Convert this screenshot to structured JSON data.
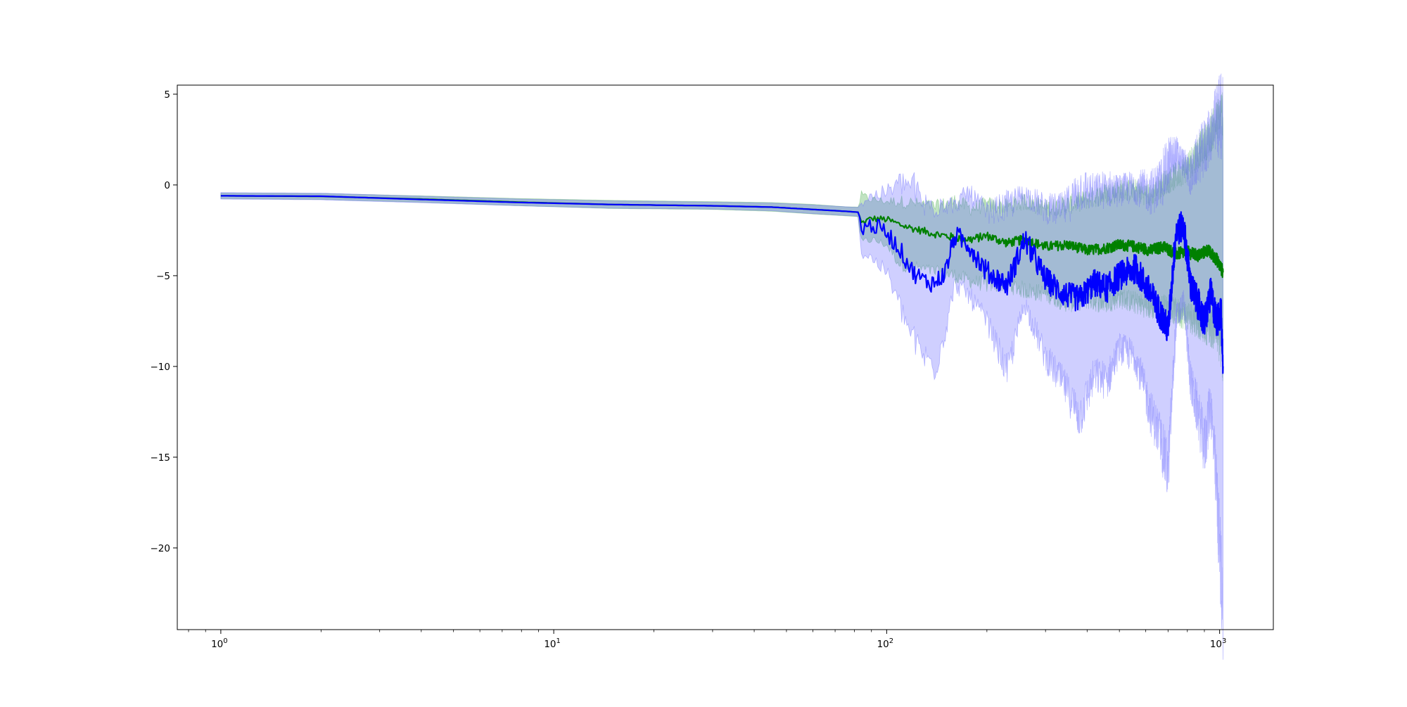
{
  "chart_data": {
    "type": "line",
    "title": "",
    "xlabel": "",
    "ylabel": "",
    "xscale": "log",
    "xlim": [
      0.74,
      1450
    ],
    "ylim": [
      -24.5,
      5.5
    ],
    "grid": false,
    "legend": "none",
    "x_ticks": [
      {
        "value": 1,
        "base": "10",
        "exp": "0"
      },
      {
        "value": 10,
        "base": "10",
        "exp": "1"
      },
      {
        "value": 100,
        "base": "10",
        "exp": "2"
      },
      {
        "value": 1000,
        "base": "10",
        "exp": "3"
      }
    ],
    "y_ticks": [
      {
        "value": 5,
        "label": "5"
      },
      {
        "value": 0,
        "label": "0"
      },
      {
        "value": -5,
        "label": "−5"
      },
      {
        "value": -10,
        "label": "−10"
      },
      {
        "value": -15,
        "label": "−15"
      },
      {
        "value": -20,
        "label": "−20"
      }
    ],
    "series": [
      {
        "color": "#008000",
        "band_color": "#4caf50",
        "band_opacity": 0.35,
        "x": [
          1,
          2,
          4,
          8,
          15,
          30,
          45,
          60,
          75,
          82,
          84,
          90,
          100,
          110,
          120,
          140,
          160,
          180,
          200,
          230,
          260,
          300,
          350,
          400,
          450,
          500,
          560,
          620,
          680,
          740,
          800,
          860,
          920,
          980,
          1024
        ],
        "mean": [
          -0.6,
          -0.63,
          -0.78,
          -0.95,
          -1.08,
          -1.15,
          -1.22,
          -1.35,
          -1.45,
          -1.5,
          -2.1,
          -1.85,
          -1.9,
          -2.2,
          -2.4,
          -2.7,
          -2.9,
          -3.0,
          -2.8,
          -3.2,
          -3.0,
          -3.4,
          -3.3,
          -3.6,
          -3.5,
          -3.3,
          -3.4,
          -3.6,
          -3.4,
          -3.8,
          -3.7,
          -3.9,
          -3.6,
          -4.1,
          -4.8
        ],
        "lower": [
          -0.75,
          -0.8,
          -0.95,
          -1.15,
          -1.3,
          -1.35,
          -1.45,
          -1.6,
          -1.7,
          -1.75,
          -3.2,
          -3.0,
          -3.3,
          -4.4,
          -4.5,
          -4.8,
          -5.0,
          -5.3,
          -5.5,
          -5.5,
          -5.8,
          -6.0,
          -6.5,
          -6.3,
          -6.5,
          -6.2,
          -6.5,
          -6.8,
          -6.7,
          -7.0,
          -7.2,
          -7.5,
          -7.8,
          -8.0,
          -9.5
        ],
        "upper": [
          -0.45,
          -0.47,
          -0.6,
          -0.75,
          -0.85,
          -0.92,
          -0.97,
          -1.07,
          -1.2,
          -1.22,
          -0.6,
          -0.8,
          -0.9,
          -0.9,
          -1.0,
          -1.2,
          -0.9,
          -1.3,
          -1.1,
          -1.2,
          -0.9,
          -1.3,
          -1.1,
          -0.8,
          -0.5,
          -0.3,
          -0.3,
          -0.6,
          0.1,
          0.5,
          1.0,
          1.8,
          2.5,
          3.5,
          4.1
        ]
      },
      {
        "color": "#0000ff",
        "band_color": "#6060ff",
        "band_opacity": 0.3,
        "x": [
          1,
          2,
          4,
          8,
          15,
          30,
          45,
          60,
          75,
          82,
          84,
          90,
          100,
          110,
          120,
          130,
          140,
          150,
          160,
          175,
          200,
          230,
          260,
          300,
          340,
          380,
          420,
          460,
          500,
          560,
          620,
          660,
          700,
          740,
          780,
          820,
          860,
          900,
          940,
          980,
          1010,
          1024
        ],
        "mean": [
          -0.6,
          -0.62,
          -0.8,
          -0.97,
          -1.08,
          -1.15,
          -1.22,
          -1.35,
          -1.45,
          -1.5,
          -2.4,
          -2.2,
          -2.6,
          -3.6,
          -4.8,
          -5.3,
          -5.4,
          -4.8,
          -2.8,
          -3.2,
          -4.8,
          -5.5,
          -3.0,
          -5.2,
          -6.0,
          -6.3,
          -5.4,
          -5.7,
          -5.0,
          -4.6,
          -6.0,
          -7.0,
          -8.0,
          -2.5,
          -2.3,
          -5.6,
          -6.5,
          -7.6,
          -6.0,
          -7.5,
          -7.0,
          -10.2
        ],
        "lower": [
          -0.78,
          -0.82,
          -0.98,
          -1.15,
          -1.28,
          -1.33,
          -1.42,
          -1.58,
          -1.68,
          -1.72,
          -3.8,
          -4.0,
          -4.8,
          -6.8,
          -8.5,
          -9.5,
          -10.0,
          -8.0,
          -5.5,
          -6.0,
          -7.5,
          -10.3,
          -6.5,
          -9.5,
          -11.0,
          -12.8,
          -10.5,
          -10.8,
          -9.0,
          -9.5,
          -12.5,
          -13.8,
          -15.9,
          -7.5,
          -6.5,
          -11.0,
          -12.5,
          -14.5,
          -12.0,
          -17.0,
          -21.5,
          -23.3
        ],
        "upper": [
          -0.42,
          -0.45,
          -0.62,
          -0.78,
          -0.88,
          -0.95,
          -1.0,
          -1.1,
          -1.2,
          -1.24,
          -1.0,
          -0.6,
          -0.4,
          0.1,
          0.0,
          -1.2,
          -1.0,
          -0.9,
          -1.2,
          -0.4,
          -1.5,
          -1.2,
          -0.5,
          -1.3,
          -1.4,
          -0.2,
          -0.4,
          -0.2,
          -0.3,
          -0.1,
          -0.4,
          0.0,
          1.0,
          1.8,
          1.2,
          0.5,
          1.5,
          2.0,
          2.8,
          3.6,
          3.8,
          4.0
        ]
      }
    ]
  }
}
